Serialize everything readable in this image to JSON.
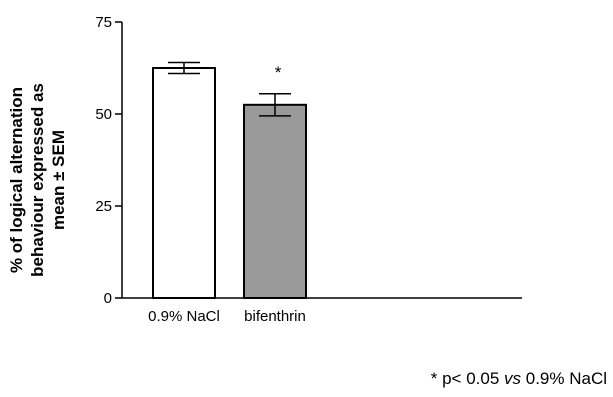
{
  "chart_data": {
    "type": "bar",
    "categories": [
      "0.9% NaCl",
      "bifenthrin"
    ],
    "values": [
      62.5,
      52.5
    ],
    "errors": [
      1.5,
      3.0
    ],
    "bar_colors": [
      "#ffffff",
      "#999999"
    ],
    "significance_marks": [
      "",
      "*"
    ],
    "ylabel_lines": [
      "% of logical alternation",
      "behaviour expressed as",
      "mean ± SEM"
    ],
    "xlabel": "",
    "ylim": [
      0,
      75
    ],
    "yticks": [
      0,
      25,
      50,
      75
    ],
    "grid": false
  },
  "footnote": {
    "prefix": "* p< 0.05 ",
    "vs": "vs",
    "suffix": " 0.9% NaCl"
  }
}
